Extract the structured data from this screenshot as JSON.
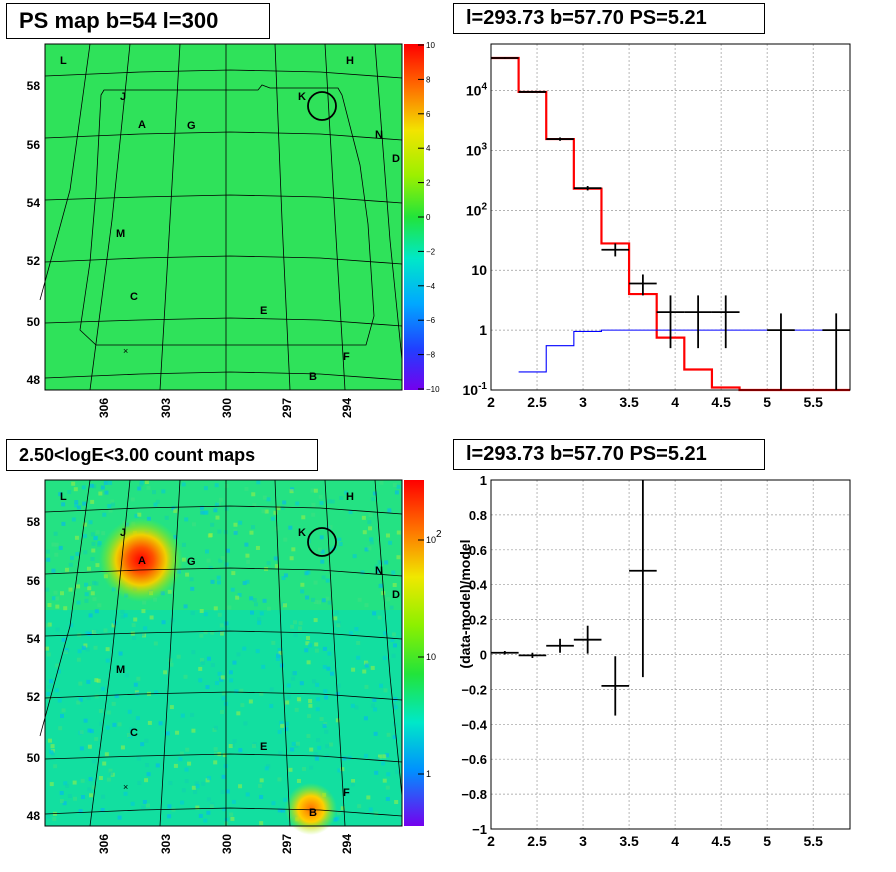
{
  "panels": {
    "ps_map": {
      "title": "PS map b=54 l=300",
      "sources": [
        "L",
        "H",
        "J",
        "K",
        "A",
        "G",
        "N",
        "D",
        "M",
        "C",
        "E",
        "F",
        "B"
      ],
      "y_ticks": [
        "58",
        "56",
        "54",
        "52",
        "50",
        "48"
      ],
      "x_ticks": [
        "306",
        "303",
        "300",
        "297",
        "294"
      ],
      "colorbar_ticks": [
        "10",
        "8",
        "6",
        "4",
        "2",
        "0",
        "−2",
        "−4",
        "−6",
        "−8",
        "−10"
      ]
    },
    "spectrum": {
      "title": "l=293.73 b=57.70 PS=5.21",
      "x_ticks": [
        "2",
        "2.5",
        "3",
        "3.5",
        "4",
        "4.5",
        "5",
        "5.5"
      ],
      "y_ticks": [
        "10^4",
        "10^3",
        "10^2",
        "10",
        "1",
        "10^-1"
      ]
    },
    "count_map": {
      "title": "2.50<logE<3.00 count maps",
      "sources": [
        "L",
        "H",
        "J",
        "K",
        "A",
        "G",
        "N",
        "D",
        "M",
        "C",
        "E",
        "F",
        "B"
      ],
      "y_ticks": [
        "58",
        "56",
        "54",
        "52",
        "50",
        "48"
      ],
      "x_ticks": [
        "306",
        "303",
        "300",
        "297",
        "294"
      ],
      "colorbar_ticks": [
        "10^2",
        "10",
        "1"
      ]
    },
    "residual": {
      "title": "l=293.73 b=57.70 PS=5.21",
      "ylabel": "(data-model)/model",
      "x_ticks": [
        "2",
        "2.5",
        "3",
        "3.5",
        "4",
        "4.5",
        "5",
        "5.5"
      ],
      "y_ticks": [
        "1",
        "0.8",
        "0.6",
        "0.4",
        "0.2",
        "0",
        "−0.2",
        "−0.4",
        "−0.6",
        "−0.8",
        "−1"
      ]
    }
  },
  "chart_data": [
    {
      "type": "heatmap",
      "title": "PS map b=54 l=300",
      "x_ticks": [
        306,
        303,
        300,
        297,
        294
      ],
      "y_ticks": [
        58,
        56,
        54,
        52,
        50,
        48
      ],
      "colorbar_range": [
        -10,
        10
      ]
    },
    {
      "type": "line",
      "title": "l=293.73 b=57.70 PS=5.21",
      "xlim": [
        2,
        5.9
      ],
      "ylim": [
        0.1,
        60000
      ],
      "yscale": "log",
      "grid": true,
      "series": [
        {
          "kind": "data",
          "color": "#000000",
          "x": [
            2.15,
            2.45,
            2.75,
            3.05,
            3.35,
            3.65,
            3.95,
            4.25,
            4.55,
            5.15,
            5.75
          ],
          "y": [
            35000,
            9500,
            1550,
            235,
            22,
            6,
            2,
            2,
            2,
            1,
            1
          ],
          "xerr": [
            0.15,
            0.15,
            0.15,
            0.15,
            0.15,
            0.15,
            0.15,
            0.15,
            0.15,
            0.15,
            0.15
          ],
          "ylo": [
            34000,
            9200,
            1450,
            215,
            17,
            3.8,
            0.5,
            0.5,
            0.5,
            0.1,
            0.1
          ],
          "yhi": [
            36000,
            9800,
            1650,
            255,
            28,
            8.5,
            3.8,
            3.8,
            3.8,
            1.9,
            1.9
          ]
        },
        {
          "kind": "model",
          "color": "#ff0000",
          "edges": [
            2.0,
            2.3,
            2.6,
            2.9,
            3.2,
            3.5,
            3.8,
            4.1,
            4.4,
            4.7,
            5.0,
            5.3,
            5.6,
            5.9
          ],
          "values": [
            35000,
            9500,
            1550,
            230,
            28,
            4,
            0.75,
            0.22,
            0.11,
            0.1,
            0.1,
            0.1,
            0.1
          ]
        },
        {
          "kind": "background",
          "color": "#0000ff",
          "edges": [
            2.3,
            2.6,
            2.9,
            3.2,
            3.5,
            3.8,
            4.1,
            4.4,
            4.7,
            5.0,
            5.3,
            5.6,
            5.9
          ],
          "values": [
            0.2,
            0.55,
            0.95,
            1,
            1,
            1,
            1,
            1,
            1,
            1,
            1,
            1
          ]
        }
      ]
    },
    {
      "type": "heatmap",
      "title": "2.50<logE<3.00 count maps",
      "x_ticks": [
        306,
        303,
        300,
        297,
        294
      ],
      "y_ticks": [
        58,
        56,
        54,
        52,
        50,
        48
      ],
      "colorbar_scale": "log"
    },
    {
      "type": "scatter",
      "title": "l=293.73 b=57.70 PS=5.21",
      "ylabel": "(data-model)/model",
      "xlim": [
        2,
        5.9
      ],
      "ylim": [
        -1,
        1
      ],
      "grid": true,
      "points": [
        {
          "x": 2.15,
          "y": 0.01,
          "xerr": 0.15,
          "yerr": 0.01
        },
        {
          "x": 2.45,
          "y": -0.005,
          "xerr": 0.15,
          "yerr": 0.015
        },
        {
          "x": 2.75,
          "y": 0.05,
          "xerr": 0.15,
          "yerr": 0.04
        },
        {
          "x": 3.05,
          "y": 0.085,
          "xerr": 0.15,
          "yerr": 0.08
        },
        {
          "x": 3.35,
          "y": -0.18,
          "xerr": 0.15,
          "yerr": 0.17
        },
        {
          "x": 3.65,
          "y": 0.48,
          "xerr": 0.15,
          "yerr": 0.61
        }
      ]
    }
  ]
}
